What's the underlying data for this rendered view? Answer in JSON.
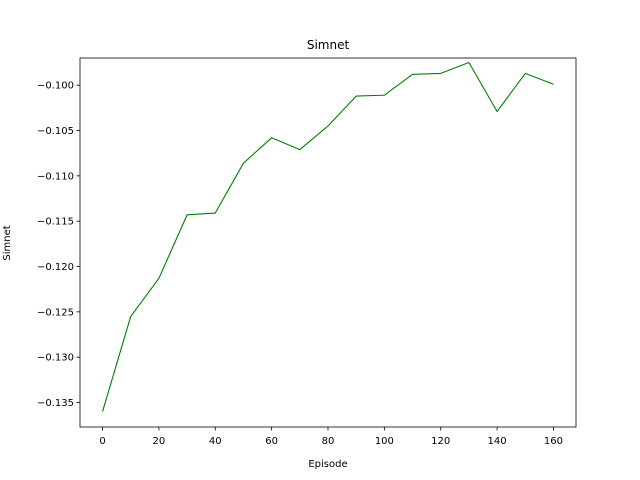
{
  "chart_data": {
    "type": "line",
    "title": "Simnet",
    "xlabel": "Episode",
    "ylabel": "Simnet",
    "xlim": [
      -8,
      168
    ],
    "ylim": [
      -0.1377,
      -0.097
    ],
    "xticks": [
      0,
      20,
      40,
      60,
      80,
      100,
      120,
      140,
      160
    ],
    "xtick_labels": [
      "0",
      "20",
      "40",
      "60",
      "80",
      "100",
      "120",
      "140",
      "160"
    ],
    "yticks": [
      -0.135,
      -0.13,
      -0.125,
      -0.12,
      -0.115,
      -0.11,
      -0.105,
      -0.1
    ],
    "ytick_labels": [
      "−0.135",
      "−0.130",
      "−0.125",
      "−0.120",
      "−0.115",
      "−0.110",
      "−0.105",
      "−0.100"
    ],
    "grid": false,
    "series": [
      {
        "color": "#008000",
        "x": [
          0,
          10,
          20,
          30,
          40,
          50,
          60,
          70,
          80,
          90,
          100,
          110,
          120,
          130,
          140,
          150,
          160
        ],
        "y": [
          -0.136,
          -0.1255,
          -0.1213,
          -0.1143,
          -0.1141,
          -0.1086,
          -0.1058,
          -0.1071,
          -0.1045,
          -0.1012,
          -0.1011,
          -0.0988,
          -0.0987,
          -0.0975,
          -0.1029,
          -0.0987,
          -0.0999
        ]
      }
    ]
  }
}
